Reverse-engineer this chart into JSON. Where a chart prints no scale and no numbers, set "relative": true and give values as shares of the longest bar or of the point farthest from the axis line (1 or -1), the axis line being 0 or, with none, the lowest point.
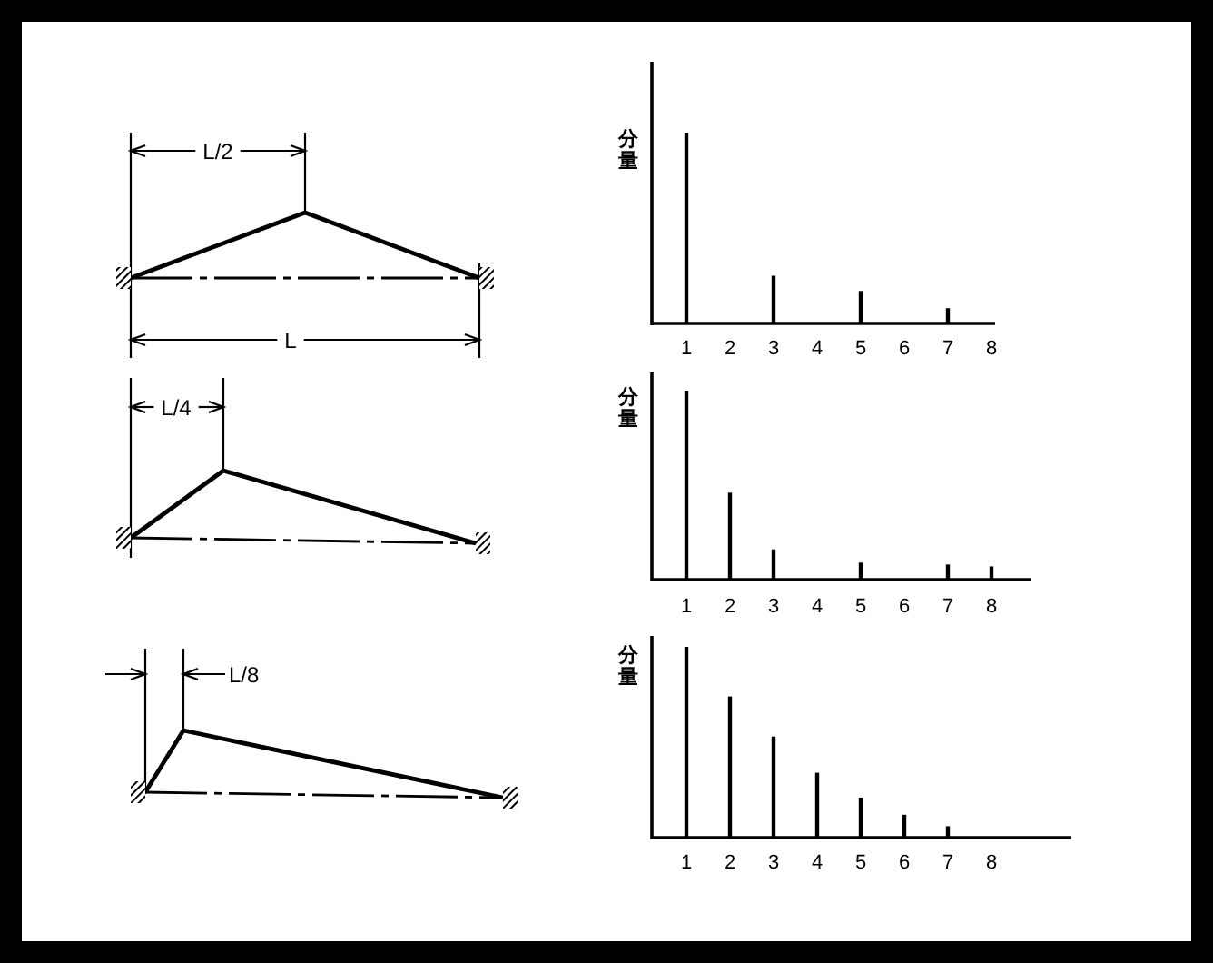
{
  "chart_data": [
    {
      "type": "other",
      "annotations": [
        "L/2",
        "L"
      ]
    },
    {
      "type": "bar",
      "ylabel": "分量",
      "categories": [
        "1",
        "2",
        "3",
        "4",
        "5",
        "6",
        "7",
        "8"
      ],
      "values": [
        1,
        null,
        0.25,
        null,
        0.17,
        null,
        0.08,
        null
      ],
      "relative": true,
      "color": "#000000"
    },
    {
      "type": "other",
      "annotations": [
        "L/4"
      ]
    },
    {
      "type": "bar",
      "ylabel": "分量",
      "categories": [
        "1",
        "2",
        "3",
        "4",
        "5",
        "6",
        "7",
        "8"
      ],
      "values": [
        1,
        0.46,
        0.16,
        null,
        0.09,
        null,
        0.08,
        0.07
      ],
      "relative": true,
      "color": "#000000"
    },
    {
      "type": "other",
      "annotations": [
        "L/8"
      ]
    },
    {
      "type": "bar",
      "ylabel": "分量",
      "categories": [
        "1",
        "2",
        "3",
        "4",
        "5",
        "6",
        "7",
        "8"
      ],
      "values": [
        1,
        0.74,
        0.53,
        0.34,
        0.21,
        0.12,
        0.06,
        null
      ],
      "relative": true,
      "color": "#000000"
    }
  ]
}
